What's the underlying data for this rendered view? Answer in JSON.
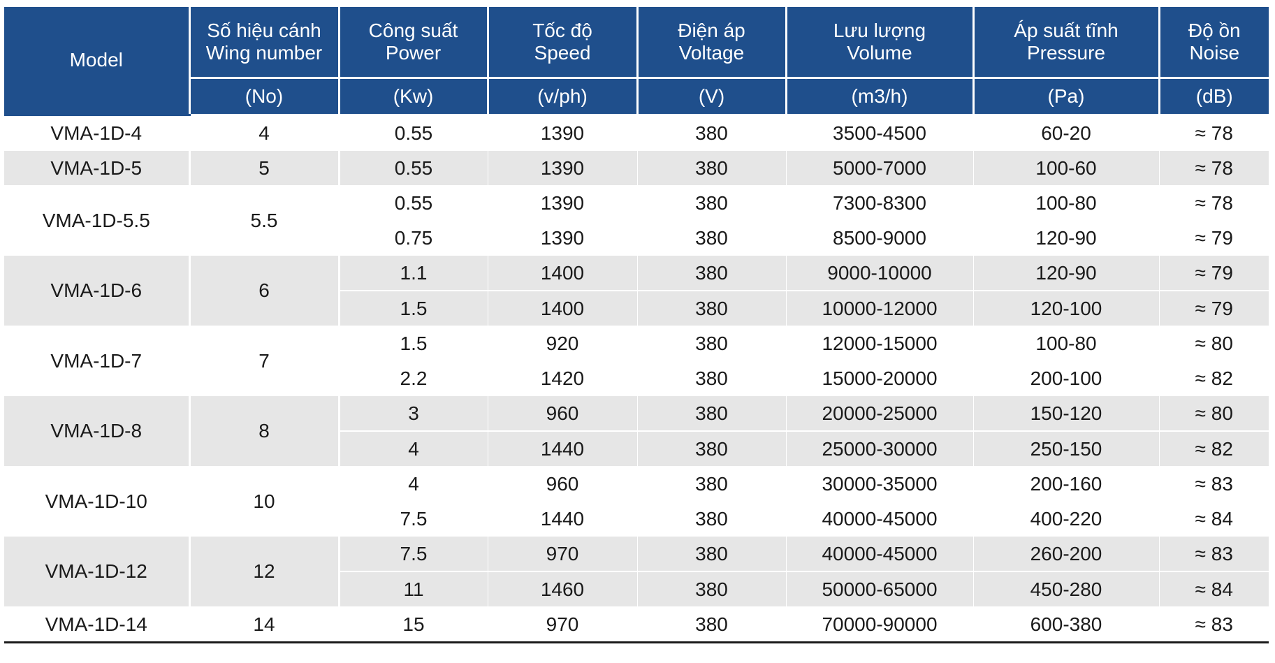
{
  "header": {
    "model": "Model",
    "columns": [
      {
        "vi": "Số hiệu cánh",
        "en": "Wing number",
        "unit": "(No)"
      },
      {
        "vi": "Công suất",
        "en": "Power",
        "unit": "(Kw)"
      },
      {
        "vi": "Tốc độ",
        "en": "Speed",
        "unit": "(v/ph)"
      },
      {
        "vi": "Điện áp",
        "en": "Voltage",
        "unit": "(V)"
      },
      {
        "vi": "Lưu lượng",
        "en": "Volume",
        "unit": "(m3/h)"
      },
      {
        "vi": "Áp suất tĩnh",
        "en": "Pressure",
        "unit": "(Pa)"
      },
      {
        "vi": "Độ ồn",
        "en": "Noise",
        "unit": "(dB)"
      }
    ]
  },
  "groups": [
    {
      "model": "VMA-1D-4",
      "wing": "4",
      "rows": [
        {
          "power": "0.55",
          "speed": "1390",
          "voltage": "380",
          "volume": "3500-4500",
          "pressure": "60-20",
          "noise": "≈ 78"
        }
      ]
    },
    {
      "model": "VMA-1D-5",
      "wing": "5",
      "rows": [
        {
          "power": "0.55",
          "speed": "1390",
          "voltage": "380",
          "volume": "5000-7000",
          "pressure": "100-60",
          "noise": "≈ 78"
        }
      ]
    },
    {
      "model": "VMA-1D-5.5",
      "wing": "5.5",
      "rows": [
        {
          "power": "0.55",
          "speed": "1390",
          "voltage": "380",
          "volume": "7300-8300",
          "pressure": "100-80",
          "noise": "≈ 78"
        },
        {
          "power": "0.75",
          "speed": "1390",
          "voltage": "380",
          "volume": "8500-9000",
          "pressure": "120-90",
          "noise": "≈ 79"
        }
      ]
    },
    {
      "model": "VMA-1D-6",
      "wing": "6",
      "rows": [
        {
          "power": "1.1",
          "speed": "1400",
          "voltage": "380",
          "volume": "9000-10000",
          "pressure": "120-90",
          "noise": "≈ 79"
        },
        {
          "power": "1.5",
          "speed": "1400",
          "voltage": "380",
          "volume": "10000-12000",
          "pressure": "120-100",
          "noise": "≈ 79"
        }
      ]
    },
    {
      "model": "VMA-1D-7",
      "wing": "7",
      "rows": [
        {
          "power": "1.5",
          "speed": "920",
          "voltage": "380",
          "volume": "12000-15000",
          "pressure": "100-80",
          "noise": "≈ 80"
        },
        {
          "power": "2.2",
          "speed": "1420",
          "voltage": "380",
          "volume": "15000-20000",
          "pressure": "200-100",
          "noise": "≈ 82"
        }
      ]
    },
    {
      "model": "VMA-1D-8",
      "wing": "8",
      "rows": [
        {
          "power": "3",
          "speed": "960",
          "voltage": "380",
          "volume": "20000-25000",
          "pressure": "150-120",
          "noise": "≈ 80"
        },
        {
          "power": "4",
          "speed": "1440",
          "voltage": "380",
          "volume": "25000-30000",
          "pressure": "250-150",
          "noise": "≈ 82"
        }
      ]
    },
    {
      "model": "VMA-1D-10",
      "wing": "10",
      "rows": [
        {
          "power": "4",
          "speed": "960",
          "voltage": "380",
          "volume": "30000-35000",
          "pressure": "200-160",
          "noise": "≈ 83"
        },
        {
          "power": "7.5",
          "speed": "1440",
          "voltage": "380",
          "volume": "40000-45000",
          "pressure": "400-220",
          "noise": "≈ 84"
        }
      ]
    },
    {
      "model": "VMA-1D-12",
      "wing": "12",
      "rows": [
        {
          "power": "7.5",
          "speed": "970",
          "voltage": "380",
          "volume": "40000-45000",
          "pressure": "260-200",
          "noise": "≈ 83"
        },
        {
          "power": "11",
          "speed": "1460",
          "voltage": "380",
          "volume": "50000-65000",
          "pressure": "450-280",
          "noise": "≈ 84"
        }
      ]
    },
    {
      "model": "VMA-1D-14",
      "wing": "14",
      "rows": [
        {
          "power": "15",
          "speed": "970",
          "voltage": "380",
          "volume": "70000-90000",
          "pressure": "600-380",
          "noise": "≈ 83"
        }
      ]
    }
  ]
}
